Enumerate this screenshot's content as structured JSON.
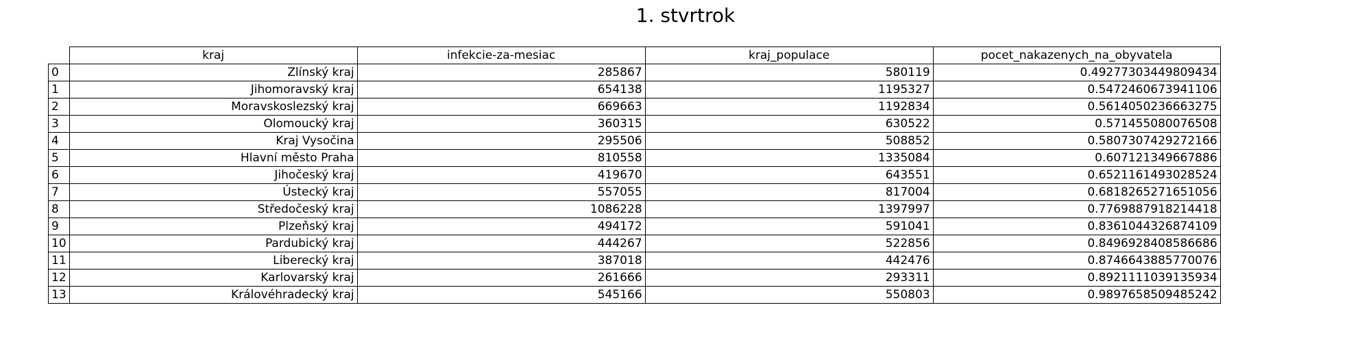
{
  "chart_data": {
    "type": "table",
    "title": "1. stvrtrok",
    "columns": [
      "kraj",
      "infekcie-za-mesiac",
      "kraj_populace",
      "pocet_nakazenych_na_obyvatela"
    ],
    "rows": [
      {
        "index": "0",
        "kraj": "Zlínský kraj",
        "infekcie": "285867",
        "populace": "580119",
        "pomer": "0.49277303449809434"
      },
      {
        "index": "1",
        "kraj": "Jihomoravský kraj",
        "infekcie": "654138",
        "populace": "1195327",
        "pomer": "0.5472460673941106"
      },
      {
        "index": "2",
        "kraj": "Moravskoslezský kraj",
        "infekcie": "669663",
        "populace": "1192834",
        "pomer": "0.5614050236663275"
      },
      {
        "index": "3",
        "kraj": "Olomoucký kraj",
        "infekcie": "360315",
        "populace": "630522",
        "pomer": "0.571455080076508"
      },
      {
        "index": "4",
        "kraj": "Kraj Vysočina",
        "infekcie": "295506",
        "populace": "508852",
        "pomer": "0.5807307429272166"
      },
      {
        "index": "5",
        "kraj": "Hlavní město Praha",
        "infekcie": "810558",
        "populace": "1335084",
        "pomer": "0.607121349667886"
      },
      {
        "index": "6",
        "kraj": "Jihočeský kraj",
        "infekcie": "419670",
        "populace": "643551",
        "pomer": "0.6521161493028524"
      },
      {
        "index": "7",
        "kraj": "Ústecký kraj",
        "infekcie": "557055",
        "populace": "817004",
        "pomer": "0.6818265271651056"
      },
      {
        "index": "8",
        "kraj": "Středočeský kraj",
        "infekcie": "1086228",
        "populace": "1397997",
        "pomer": "0.7769887918214418"
      },
      {
        "index": "9",
        "kraj": "Plzeňský kraj",
        "infekcie": "494172",
        "populace": "591041",
        "pomer": "0.8361044326874109"
      },
      {
        "index": "10",
        "kraj": "Pardubický kraj",
        "infekcie": "444267",
        "populace": "522856",
        "pomer": "0.8496928408586686"
      },
      {
        "index": "11",
        "kraj": "Liberecký kraj",
        "infekcie": "387018",
        "populace": "442476",
        "pomer": "0.8746643885770076"
      },
      {
        "index": "12",
        "kraj": "Karlovarský kraj",
        "infekcie": "261666",
        "populace": "293311",
        "pomer": "0.8921111039135934"
      },
      {
        "index": "13",
        "kraj": "Královéhradecký kraj",
        "infekcie": "545166",
        "populace": "550803",
        "pomer": "0.9897658509485242"
      }
    ]
  }
}
